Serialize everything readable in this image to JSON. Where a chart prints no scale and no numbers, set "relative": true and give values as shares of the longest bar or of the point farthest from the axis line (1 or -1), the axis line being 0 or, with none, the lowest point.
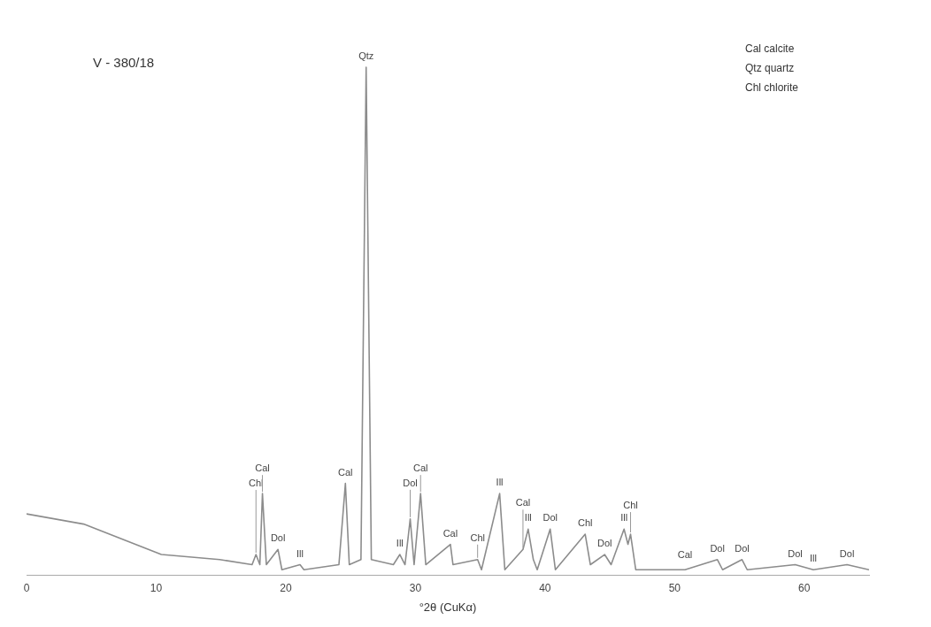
{
  "chart_data": {
    "type": "line",
    "title": "V - 380/18",
    "xlabel": "°2θ (CuKα)",
    "relative": true,
    "xlim": [
      0,
      65
    ],
    "xticks": [
      0,
      10,
      20,
      30,
      40,
      50,
      60
    ],
    "grid": false,
    "legend": false,
    "marker": "none",
    "series": [
      {
        "color": "#8c8c8c",
        "x": [
          0,
          4.4,
          10.4,
          14.9,
          17.4,
          17.7,
          18.0,
          18.2,
          18.5,
          19.4,
          19.7,
          21.1,
          21.4,
          24.1,
          24.6,
          24.9,
          25.8,
          26.2,
          26.6,
          28.3,
          28.8,
          29.2,
          29.6,
          29.9,
          30.4,
          30.8,
          32.7,
          32.9,
          34.8,
          35.1,
          36.5,
          36.9,
          38.3,
          38.7,
          39.1,
          39.4,
          40.4,
          40.8,
          43.1,
          43.5,
          44.6,
          45.1,
          46.1,
          46.4,
          46.6,
          47.0,
          50.8,
          53.3,
          53.7,
          55.2,
          55.6,
          59.3,
          60.7,
          63.3,
          65
        ],
        "values": [
          0.12,
          0.1,
          0.04,
          0.03,
          0.02,
          0.04,
          0.02,
          0.16,
          0.02,
          0.05,
          0.01,
          0.02,
          0.01,
          0.02,
          0.18,
          0.02,
          0.03,
          1.0,
          0.03,
          0.02,
          0.04,
          0.02,
          0.11,
          0.02,
          0.16,
          0.02,
          0.06,
          0.02,
          0.03,
          0.01,
          0.16,
          0.01,
          0.05,
          0.09,
          0.03,
          0.01,
          0.09,
          0.01,
          0.08,
          0.02,
          0.04,
          0.02,
          0.09,
          0.06,
          0.08,
          0.01,
          0.01,
          0.03,
          0.01,
          0.03,
          0.01,
          0.02,
          0.01,
          0.02,
          0.01
        ]
      }
    ],
    "annotations": [
      "Cal calcite",
      "Qtz quartz",
      "Chl chlorite",
      {
        "text": "Chl",
        "x": 17.7,
        "y": 0.04
      },
      {
        "text": "Cal",
        "x": 18.2,
        "y": 0.16
      },
      {
        "text": "Dol",
        "x": 19.4,
        "y": 0.05
      },
      {
        "text": "Ill",
        "x": 21.1,
        "y": 0.02
      },
      {
        "text": "Cal",
        "x": 24.6,
        "y": 0.18
      },
      {
        "text": "Qtz",
        "x": 26.2,
        "y": 1.0
      },
      {
        "text": "Ill",
        "x": 28.8,
        "y": 0.04
      },
      {
        "text": "Dol",
        "x": 29.6,
        "y": 0.11
      },
      {
        "text": "Cal",
        "x": 30.4,
        "y": 0.16
      },
      {
        "text": "Cal",
        "x": 32.7,
        "y": 0.06
      },
      {
        "text": "Chl",
        "x": 34.8,
        "y": 0.03
      },
      {
        "text": "Ill",
        "x": 36.5,
        "y": 0.16
      },
      {
        "text": "Ill",
        "x": 38.7,
        "y": 0.09
      },
      {
        "text": "Cal",
        "x": 38.3,
        "y": 0.05
      },
      {
        "text": "Dol",
        "x": 40.4,
        "y": 0.09
      },
      {
        "text": "Chl",
        "x": 43.1,
        "y": 0.08
      },
      {
        "text": "Dol",
        "x": 44.6,
        "y": 0.04
      },
      {
        "text": "Ill",
        "x": 46.1,
        "y": 0.09
      },
      {
        "text": "Chl",
        "x": 46.6,
        "y": 0.08
      },
      {
        "text": "Cal",
        "x": 50.8,
        "y": 0.01
      },
      {
        "text": "Dol",
        "x": 53.3,
        "y": 0.03
      },
      {
        "text": "Dol",
        "x": 55.2,
        "y": 0.03
      },
      {
        "text": "Dol",
        "x": 59.3,
        "y": 0.02
      },
      {
        "text": "Ill",
        "x": 60.7,
        "y": 0.01
      },
      {
        "text": "Dol",
        "x": 63.3,
        "y": 0.02
      }
    ]
  }
}
